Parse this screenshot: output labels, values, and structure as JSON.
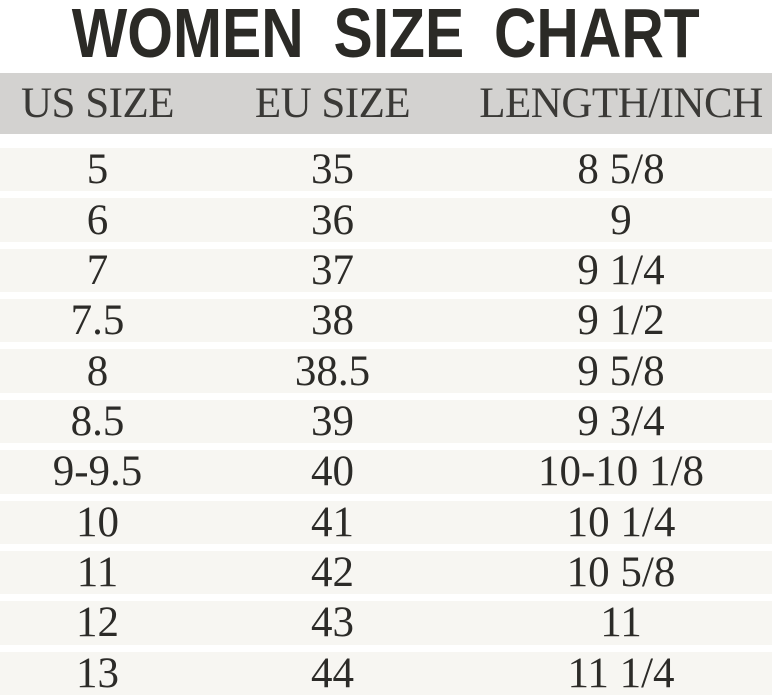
{
  "page": {
    "background": "#ffffff"
  },
  "title": {
    "text": "WOMEN SIZE CHART",
    "color": "#2b2a26"
  },
  "table": {
    "header": {
      "bg": "#d3d2d0",
      "text_color": "#3a3936",
      "columns": [
        "US SIZE",
        "EU SIZE",
        "LENGTH/INCH"
      ]
    },
    "row_bg": "#f7f6f2",
    "cell_color": "#2c2b28",
    "rows": [
      {
        "us": "5",
        "eu": "35",
        "len": "8 5/8"
      },
      {
        "us": "6",
        "eu": "36",
        "len": "9"
      },
      {
        "us": "7",
        "eu": "37",
        "len": "9 1/4"
      },
      {
        "us": "7.5",
        "eu": "38",
        "len": "9 1/2"
      },
      {
        "us": "8",
        "eu": "38.5",
        "len": "9 5/8"
      },
      {
        "us": "8.5",
        "eu": "39",
        "len": "9 3/4"
      },
      {
        "us": "9-9.5",
        "eu": "40",
        "len": "10-10 1/8"
      },
      {
        "us": "10",
        "eu": "41",
        "len": "10 1/4"
      },
      {
        "us": "11",
        "eu": "42",
        "len": "10 5/8"
      },
      {
        "us": "12",
        "eu": "43",
        "len": "11"
      },
      {
        "us": "13",
        "eu": "44",
        "len": "11 1/4"
      }
    ]
  },
  "chart_data": {
    "type": "table",
    "title": "WOMEN SIZE CHART",
    "columns": [
      "US SIZE",
      "EU SIZE",
      "LENGTH/INCH"
    ],
    "rows": [
      [
        "5",
        "35",
        "8 5/8"
      ],
      [
        "6",
        "36",
        "9"
      ],
      [
        "7",
        "37",
        "9 1/4"
      ],
      [
        "7.5",
        "38",
        "9 1/2"
      ],
      [
        "8",
        "38.5",
        "9 5/8"
      ],
      [
        "8.5",
        "39",
        "9 3/4"
      ],
      [
        "9-9.5",
        "40",
        "10-10 1/8"
      ],
      [
        "10",
        "41",
        "10 1/4"
      ],
      [
        "11",
        "42",
        "10 5/8"
      ],
      [
        "12",
        "43",
        "11"
      ],
      [
        "13",
        "44",
        "11 1/4"
      ]
    ]
  }
}
